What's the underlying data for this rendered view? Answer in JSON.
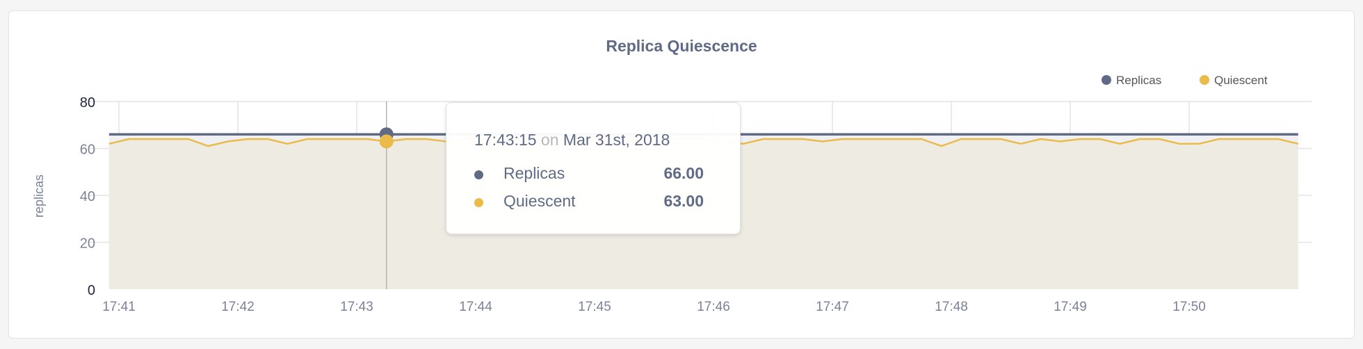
{
  "chart_data": {
    "type": "area",
    "title": "Replica Quiescence",
    "ylabel": "replicas",
    "xlabel": "",
    "ylim": [
      0,
      80
    ],
    "yticks": [
      "0",
      "20",
      "40",
      "60",
      "80"
    ],
    "xticks": [
      "17:41",
      "17:42",
      "17:43",
      "17:44",
      "17:45",
      "17:46",
      "17:47",
      "17:48",
      "17:49",
      "17:50"
    ],
    "grid": true,
    "legend_position": "top-right",
    "x_start": "17:40:55",
    "x_step_seconds": 10,
    "series": [
      {
        "name": "Replicas",
        "color": "#5f6a85",
        "fill": "#eef0f3",
        "values": [
          66,
          66,
          66,
          66,
          66,
          66,
          66,
          66,
          66,
          66,
          66,
          66,
          66,
          66,
          66,
          66,
          66,
          66,
          66,
          66,
          66,
          66,
          66,
          66,
          66,
          66,
          66,
          66,
          66,
          66,
          66,
          66,
          66,
          66,
          66,
          66,
          66,
          66,
          66,
          66,
          66,
          66,
          66,
          66,
          66,
          66,
          66,
          66,
          66,
          66,
          66,
          66,
          66,
          66,
          66,
          66,
          66,
          66,
          66,
          66,
          66
        ]
      },
      {
        "name": "Quiescent",
        "color": "#ebbb49",
        "fill": "#eeebe3",
        "values": [
          62,
          64,
          64,
          64,
          64,
          61,
          63,
          64,
          64,
          62,
          64,
          64,
          64,
          64,
          63,
          64,
          64,
          63,
          64,
          64,
          64,
          63,
          64,
          64,
          64,
          64,
          63,
          64,
          64,
          64,
          64,
          63,
          62,
          64,
          64,
          64,
          63,
          64,
          64,
          64,
          64,
          64,
          61,
          64,
          64,
          64,
          62,
          64,
          63,
          64,
          64,
          62,
          64,
          64,
          62,
          62,
          64,
          64,
          64,
          64,
          62
        ]
      }
    ],
    "tooltip": {
      "time": "17:43:15",
      "on": "on",
      "date": "Mar 31st, 2018",
      "rows": [
        {
          "name": "Replicas",
          "value": "66.00",
          "color": "#5f6a85"
        },
        {
          "name": "Quiescent",
          "value": "63.00",
          "color": "#ebbb49"
        }
      ]
    }
  }
}
